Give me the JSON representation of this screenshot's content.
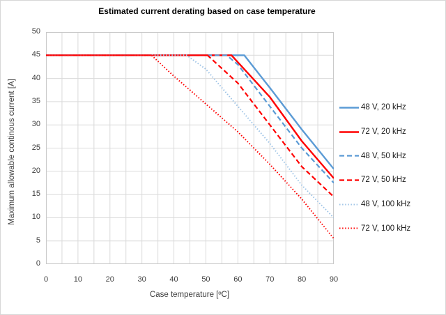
{
  "chart_data": {
    "type": "line",
    "title": "Estimated current derating based on case temperature",
    "xlabel": "Case temperature [ºC]",
    "ylabel": "Maximum allowable  continous current [A]",
    "xlim": [
      0,
      90
    ],
    "ylim": [
      0,
      50
    ],
    "x_ticks": [
      0,
      10,
      20,
      30,
      40,
      50,
      60,
      70,
      80,
      90
    ],
    "x_grid_step": 5,
    "y_ticks": [
      0,
      5,
      10,
      15,
      20,
      25,
      30,
      35,
      40,
      45,
      50
    ],
    "grid": true,
    "legend_position": "right",
    "colors": {
      "gridline": "#dadada",
      "plot_border": "#c9c9c9",
      "blue": "#5B9BD5",
      "light_blue": "#9DC3E6",
      "red": "#FF0000"
    },
    "series": [
      {
        "name": "48 V, 20 kHz",
        "color": "#5B9BD5",
        "style": "solid",
        "width": 2.4,
        "points": [
          [
            0,
            45
          ],
          [
            62,
            45
          ],
          [
            70,
            38
          ],
          [
            80,
            29
          ],
          [
            90,
            20.5
          ]
        ]
      },
      {
        "name": "72 V, 20 kHz",
        "color": "#FF0000",
        "style": "solid",
        "width": 2.4,
        "points": [
          [
            0,
            45
          ],
          [
            58,
            45
          ],
          [
            70,
            36
          ],
          [
            80,
            26.5
          ],
          [
            90,
            18.5
          ]
        ]
      },
      {
        "name": "48 V, 50 kHz",
        "color": "#5B9BD5",
        "style": "dashed",
        "width": 2.2,
        "points": [
          [
            0,
            45
          ],
          [
            56.5,
            45
          ],
          [
            60,
            43
          ],
          [
            70,
            34
          ],
          [
            80,
            25
          ],
          [
            90,
            17.5
          ]
        ]
      },
      {
        "name": "72 V, 50 kHz",
        "color": "#FF0000",
        "style": "dashed",
        "width": 2.2,
        "points": [
          [
            0,
            45
          ],
          [
            50.5,
            45
          ],
          [
            60,
            39
          ],
          [
            70,
            30
          ],
          [
            80,
            21
          ],
          [
            90,
            14.5
          ]
        ]
      },
      {
        "name": "48 V, 100 kHz",
        "color": "#9DC3E6",
        "style": "dotted",
        "width": 2,
        "points": [
          [
            0,
            45
          ],
          [
            44,
            45
          ],
          [
            50,
            42
          ],
          [
            60,
            34
          ],
          [
            70,
            26
          ],
          [
            80,
            17
          ],
          [
            90,
            10
          ]
        ]
      },
      {
        "name": "72 V, 100 kHz",
        "color": "#FF0000",
        "style": "dotted",
        "width": 2,
        "points": [
          [
            0,
            45
          ],
          [
            33,
            45
          ],
          [
            40,
            40.5
          ],
          [
            50,
            34.5
          ],
          [
            60,
            28.5
          ],
          [
            70,
            21.5
          ],
          [
            80,
            14
          ],
          [
            90,
            5.5
          ]
        ]
      }
    ]
  }
}
